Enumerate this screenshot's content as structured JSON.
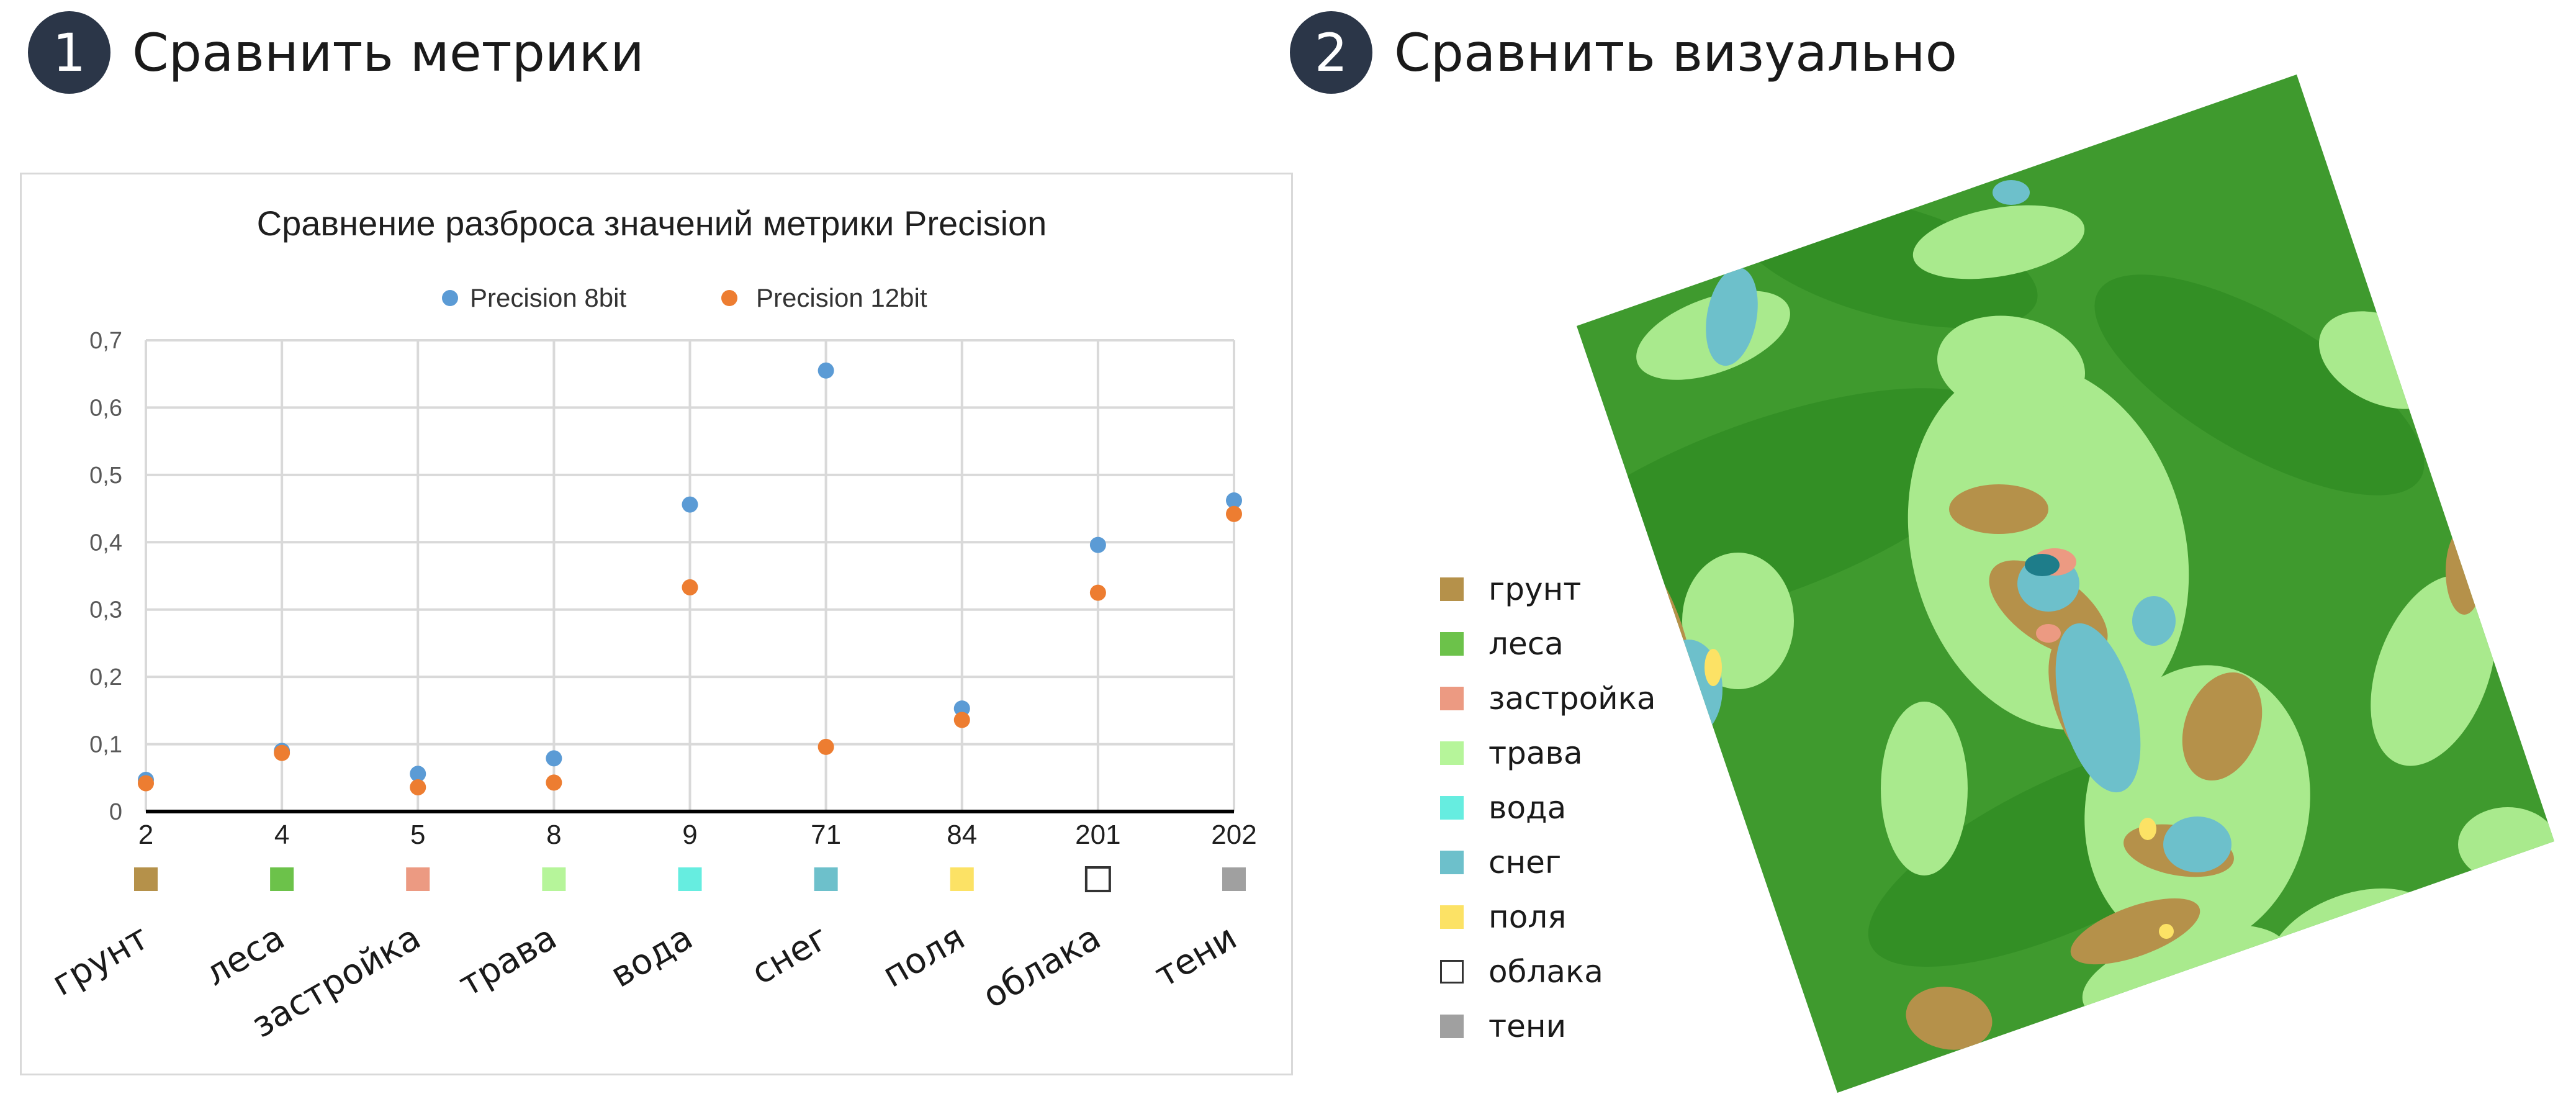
{
  "sections": [
    {
      "number": "1",
      "title": "Сравнить метрики"
    },
    {
      "number": "2",
      "title": "Сравнить визуально"
    }
  ],
  "chart_data": {
    "type": "scatter",
    "title": "Сравнение разброса значений метрики Precision",
    "categories": [
      "2",
      "4",
      "5",
      "8",
      "9",
      "71",
      "84",
      "201",
      "202"
    ],
    "series": [
      {
        "name": "Precision 8bit",
        "color": "#5b9bd5",
        "values": [
          0.047,
          0.09,
          0.056,
          0.079,
          0.456,
          0.655,
          0.153,
          0.396,
          0.462
        ]
      },
      {
        "name": "Precision 12bit",
        "color": "#ed7d31",
        "values": [
          0.042,
          0.087,
          0.036,
          0.043,
          0.333,
          0.096,
          0.136,
          0.325,
          0.442
        ]
      }
    ],
    "ylim": [
      0,
      0.7
    ],
    "yticks": [
      "0",
      "0,1",
      "0,2",
      "0,3",
      "0,4",
      "0,5",
      "0,6",
      "0,7"
    ],
    "grid": true,
    "legend_position": "top",
    "category_labels": [
      {
        "label": "грунт",
        "color": "#b5914a"
      },
      {
        "label": "леса",
        "color": "#6cc24a"
      },
      {
        "label": "застройка",
        "color": "#ec9a82"
      },
      {
        "label": "трава",
        "color": "#b6f59a"
      },
      {
        "label": "вода",
        "color": "#66ede0"
      },
      {
        "label": "снег",
        "color": "#6dc0cb"
      },
      {
        "label": "поля",
        "color": "#fce265"
      },
      {
        "label": "облака",
        "color": "#ffffff"
      },
      {
        "label": "тени",
        "color": "#a0a0a0"
      }
    ]
  },
  "map_legend": [
    {
      "label": "грунт",
      "color": "#b5914a"
    },
    {
      "label": "леса",
      "color": "#6cc24a"
    },
    {
      "label": "застройка",
      "color": "#ec9a82"
    },
    {
      "label": "трава",
      "color": "#b6f59a"
    },
    {
      "label": "вода",
      "color": "#66ede0"
    },
    {
      "label": "снег",
      "color": "#6dc0cb"
    },
    {
      "label": "поля",
      "color": "#fce265"
    },
    {
      "label": "облака",
      "color": "#ffffff"
    },
    {
      "label": "тени",
      "color": "#a0a0a0"
    }
  ],
  "map_colors": {
    "forest": "#3f9a2e",
    "forest_dark": "#2f8a22",
    "grass": "#a9ea8d",
    "soil": "#b5914a",
    "snow": "#6dc0cb",
    "urban": "#ec9a82",
    "fields": "#fce265",
    "water": "#1e7d8a"
  }
}
